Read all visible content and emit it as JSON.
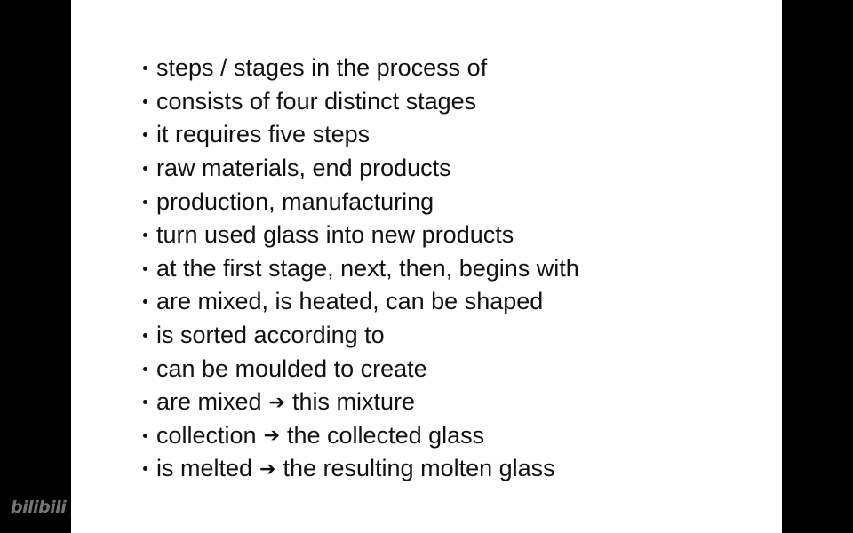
{
  "slide": {
    "items": [
      {
        "text": "steps / stages in the process of"
      },
      {
        "text": "consists of four distinct stages"
      },
      {
        "text": "it requires five steps"
      },
      {
        "text": "raw materials, end products"
      },
      {
        "text": "production, manufacturing"
      },
      {
        "text": "turn used glass into new products"
      },
      {
        "text": "at the first stage, next, then, begins with"
      },
      {
        "text": "are mixed, is heated, can be shaped"
      },
      {
        "text": "is sorted according to"
      },
      {
        "text": "can be moulded to create"
      },
      {
        "left": "are mixed",
        "arrow": "➔",
        "right": "this mixture"
      },
      {
        "left": "collection",
        "arrow": "➔",
        "right": "the collected glass"
      },
      {
        "left": "is melted",
        "arrow": "➔",
        "right": "the resulting molten glass"
      }
    ]
  },
  "watermark": {
    "text": "bilibili",
    "color": "#8a8a8a"
  }
}
